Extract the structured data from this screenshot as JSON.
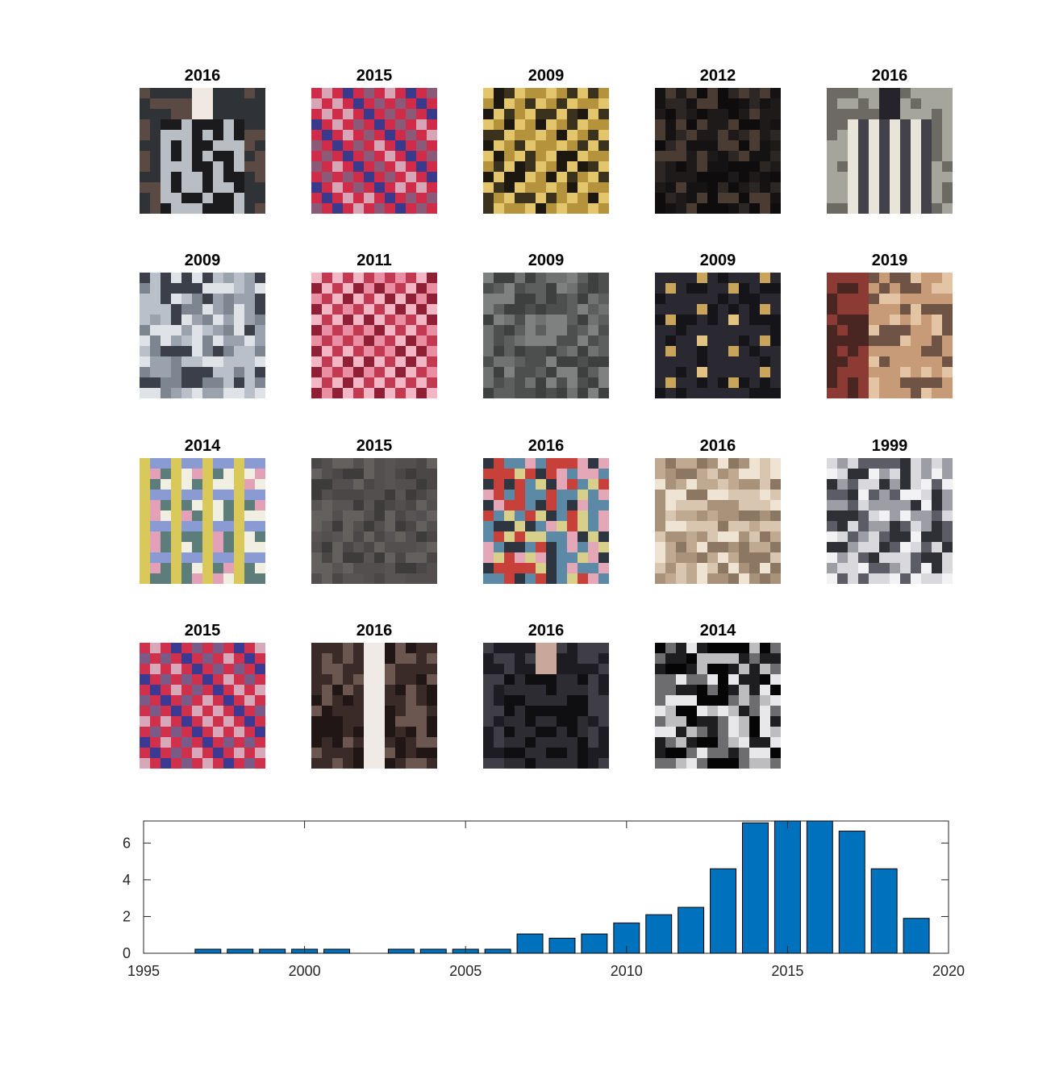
{
  "thumbnails": [
    {
      "year": "2016",
      "pattern": "runway-model",
      "colors": [
        "#2f3236",
        "#b9bec4",
        "#1b1b1e",
        "#efe9e2",
        "#5b4a44"
      ]
    },
    {
      "year": "2015",
      "pattern": "houndstooth",
      "colors": [
        "#8a5a78",
        "#d02c49",
        "#3a3a8c",
        "#d6a6b6",
        "#5b2e4e"
      ]
    },
    {
      "year": "2009",
      "pattern": "sequin-cells",
      "colors": [
        "#3b321d",
        "#b5933c",
        "#1c170f",
        "#e3c66b",
        "#6e5a2a"
      ]
    },
    {
      "year": "2012",
      "pattern": "dark-lace",
      "colors": [
        "#1d1a19",
        "#2c2624",
        "#141212",
        "#4a3c33",
        "#0e0c0c"
      ]
    },
    {
      "year": "2016",
      "pattern": "runway-model-stripes",
      "colors": [
        "#a6a59b",
        "#e8e4da",
        "#43424a",
        "#26242a",
        "#6c6a62"
      ]
    },
    {
      "year": "2009",
      "pattern": "tweed-speckle",
      "colors": [
        "#7d8591",
        "#b9c0ca",
        "#3a3f49",
        "#9aa2ad",
        "#dfe3e8"
      ]
    },
    {
      "year": "2011",
      "pattern": "pink-weave",
      "colors": [
        "#c23a52",
        "#e98ea3",
        "#8e1f35",
        "#f2b6c4",
        "#d4556f"
      ]
    },
    {
      "year": "2009",
      "pattern": "grey-felt",
      "colors": [
        "#5c5f5d",
        "#6f7270",
        "#4c4f4d",
        "#7e817f",
        "#3d403e"
      ]
    },
    {
      "year": "2009",
      "pattern": "polka-gold",
      "colors": [
        "#2a2830",
        "#c9a55c",
        "#151419",
        "#e3c382",
        "#3c3944"
      ]
    },
    {
      "year": "2019",
      "pattern": "split-sequin",
      "colors": [
        "#8b3b34",
        "#c89b78",
        "#4a2622",
        "#e3c5a5",
        "#6f5446"
      ]
    },
    {
      "year": "2014",
      "pattern": "plaid-pastel",
      "colors": [
        "#d9c95a",
        "#8a9ad3",
        "#e2a1b6",
        "#5d7d7a",
        "#f1eee2"
      ]
    },
    {
      "year": "2015",
      "pattern": "grey-flat",
      "colors": [
        "#4a4746",
        "#575453",
        "#3e3c3b",
        "#63605e",
        "#524f4e"
      ]
    },
    {
      "year": "2016",
      "pattern": "floral-brocade",
      "colors": [
        "#2d3640",
        "#c7413a",
        "#d8cf8a",
        "#e3a7b7",
        "#5c8aa6"
      ]
    },
    {
      "year": "2016",
      "pattern": "beige-sequin",
      "colors": [
        "#bfa990",
        "#d9c6b0",
        "#8b7762",
        "#efe3d4",
        "#a8927a"
      ]
    },
    {
      "year": "1999",
      "pattern": "boucle-grey",
      "colors": [
        "#5c5c66",
        "#d8d8dd",
        "#2f2f36",
        "#9d9da6",
        "#f2f2f4"
      ]
    },
    {
      "year": "2015",
      "pattern": "houndstooth",
      "colors": [
        "#7a5a86",
        "#d0304c",
        "#3b3a92",
        "#d7a8ba",
        "#552a4c"
      ]
    },
    {
      "year": "2016",
      "pattern": "zip-stripe",
      "colors": [
        "#3a2b28",
        "#6b5650",
        "#1f1615",
        "#efeae6",
        "#8d7a73"
      ]
    },
    {
      "year": "2016",
      "pattern": "runway-model-dark",
      "colors": [
        "#1c1c22",
        "#2d2c33",
        "#0f0f12",
        "#c9a79a",
        "#3f3d46"
      ]
    },
    {
      "year": "2014",
      "pattern": "boucle-bw",
      "colors": [
        "#1e1e20",
        "#bdbdbf",
        "#050505",
        "#e8e8ea",
        "#6d6d70"
      ]
    }
  ],
  "chart_data": {
    "type": "bar",
    "title": "",
    "xlabel": "",
    "ylabel": "",
    "x": [
      1995,
      1996,
      1997,
      1998,
      1999,
      2000,
      2001,
      2002,
      2003,
      2004,
      2005,
      2006,
      2007,
      2008,
      2009,
      2010,
      2011,
      2012,
      2013,
      2014,
      2015,
      2016,
      2017,
      2018,
      2019,
      2020
    ],
    "values": [
      0,
      0,
      0.22,
      0.22,
      0.22,
      0.22,
      0.22,
      0,
      0.22,
      0.22,
      0.22,
      0.22,
      1.05,
      0.82,
      1.05,
      1.65,
      2.1,
      2.5,
      4.6,
      7.1,
      7.3,
      7.3,
      6.65,
      4.6,
      1.9,
      0
    ],
    "xlim": [
      1995,
      2020
    ],
    "ylim": [
      0,
      7.2
    ],
    "xticks": [
      "1995",
      "2000",
      "2005",
      "2010",
      "2015",
      "2020"
    ],
    "yticks": [
      "0",
      "2",
      "4",
      "6"
    ],
    "bar_color": "#0072bd",
    "grid": false
  }
}
